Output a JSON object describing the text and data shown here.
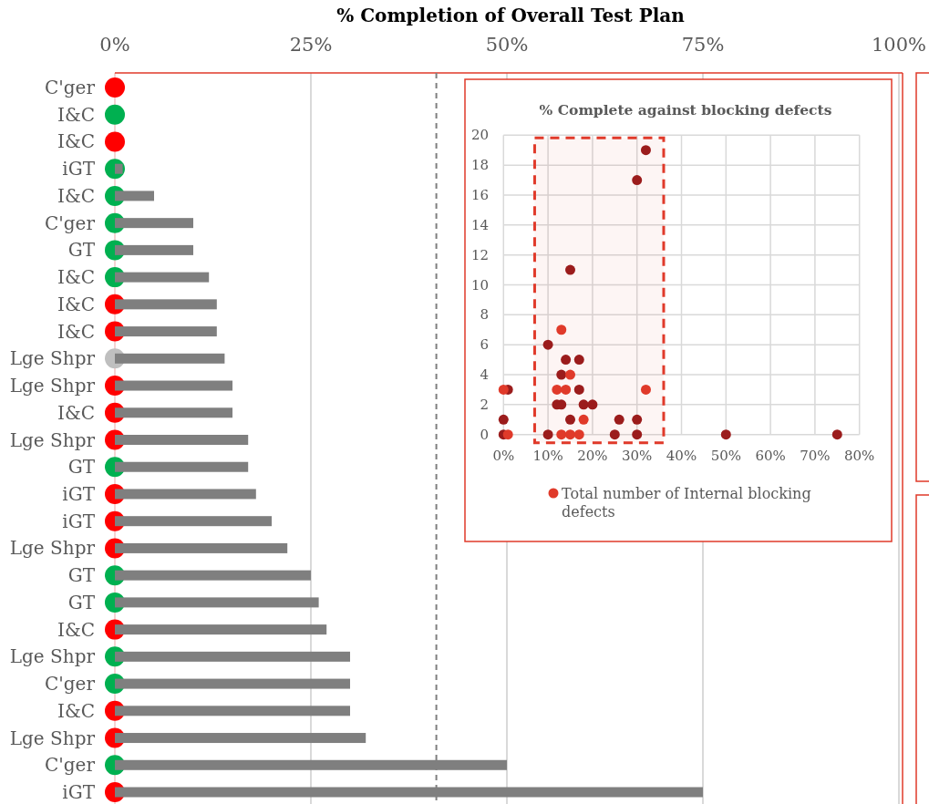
{
  "chart_data": [
    {
      "type": "bar",
      "orientation": "horizontal",
      "title": "% Completion of Overall Test Plan",
      "categories": [
        "C'ger",
        "I&C",
        "I&C",
        "iGT",
        "I&C",
        "C'ger",
        "GT",
        "I&C",
        "I&C",
        "I&C",
        "Lge Shpr",
        "Lge Shpr",
        "I&C",
        "Lge Shpr",
        "GT",
        "iGT",
        "iGT",
        "Lge Shpr",
        "GT",
        "GT",
        "I&C",
        "Lge Shpr",
        "C'ger",
        "I&C",
        "Lge Shpr",
        "C'ger",
        "iGT"
      ],
      "series": [
        {
          "type": "scatter",
          "marker": "circle",
          "values": [
            0,
            0,
            0,
            0,
            0,
            0,
            0,
            0,
            0,
            0,
            0,
            0,
            0,
            0,
            0,
            0,
            0,
            0,
            0,
            0,
            0,
            0,
            0,
            0,
            0,
            0,
            0
          ],
          "colors": [
            "#ff0000",
            "#00b050",
            "#ff0000",
            "#00b050",
            "#00b050",
            "#00b050",
            "#00b050",
            "#00b050",
            "#ff0000",
            "#ff0000",
            "#bfbfbf",
            "#ff0000",
            "#ff0000",
            "#ff0000",
            "#00b050",
            "#ff0000",
            "#ff0000",
            "#ff0000",
            "#00b050",
            "#00b050",
            "#ff0000",
            "#00b050",
            "#00b050",
            "#ff0000",
            "#ff0000",
            "#00b050",
            "#ff0000"
          ]
        },
        {
          "type": "bar",
          "color": "#7f7f7f",
          "values": [
            0,
            0,
            0,
            1,
            5,
            10,
            10,
            12,
            13,
            13,
            14,
            15,
            15,
            17,
            17,
            18,
            20,
            22,
            25,
            26,
            27,
            30,
            30,
            30,
            32,
            50,
            75
          ]
        }
      ],
      "xlim": [
        0,
        100
      ],
      "xticks": [
        {
          "value": 0,
          "label": "0%"
        },
        {
          "value": 25,
          "label": "25%"
        },
        {
          "value": 50,
          "label": "50%"
        },
        {
          "value": 75,
          "label": "75%"
        },
        {
          "value": 100,
          "label": "100%"
        }
      ],
      "grid": "x",
      "ref_lines": [
        {
          "axis": "x",
          "value": 41,
          "color": "#7f7f7f",
          "line_style": "dashed"
        }
      ]
    },
    {
      "type": "scatter",
      "title": "% Complete against blocking defects",
      "marker": "circle",
      "series": [
        {
          "color": "#9b1c1c",
          "x": [
            0,
            0,
            1,
            10,
            10,
            15,
            13,
            14,
            17,
            17,
            12,
            13,
            18,
            20,
            15,
            25,
            26,
            30,
            30,
            30,
            32,
            50,
            75
          ],
          "values": [
            1,
            0,
            3,
            0,
            6,
            11,
            4,
            5,
            5,
            3,
            2,
            2,
            2,
            2,
            1,
            0,
            1,
            1,
            0,
            17,
            19,
            0,
            0
          ]
        },
        {
          "name": "Total number of Internal blocking defects",
          "color": "#e03a2a",
          "x": [
            0,
            1,
            12,
            14,
            13,
            15,
            18,
            13,
            15,
            17,
            32
          ],
          "values": [
            3,
            0,
            3,
            3,
            7,
            4,
            1,
            0,
            0,
            0,
            3
          ]
        }
      ],
      "xlim": [
        0,
        80
      ],
      "xticks": [
        {
          "value": 0,
          "label": "0%"
        },
        {
          "value": 10,
          "label": "10%"
        },
        {
          "value": 20,
          "label": "20%"
        },
        {
          "value": 30,
          "label": "30%"
        },
        {
          "value": 40,
          "label": "40%"
        },
        {
          "value": 50,
          "label": "50%"
        },
        {
          "value": 60,
          "label": "60%"
        },
        {
          "value": 70,
          "label": "70%"
        },
        {
          "value": 80,
          "label": "80%"
        }
      ],
      "ylim": [
        0,
        20
      ],
      "yticks": [
        0,
        2,
        4,
        6,
        8,
        10,
        12,
        14,
        16,
        18,
        20
      ],
      "grid": true,
      "legend": "bottom",
      "bands": [
        {
          "axis": "x",
          "from": 7,
          "to": 36,
          "color": "#e03a2a"
        }
      ]
    }
  ]
}
